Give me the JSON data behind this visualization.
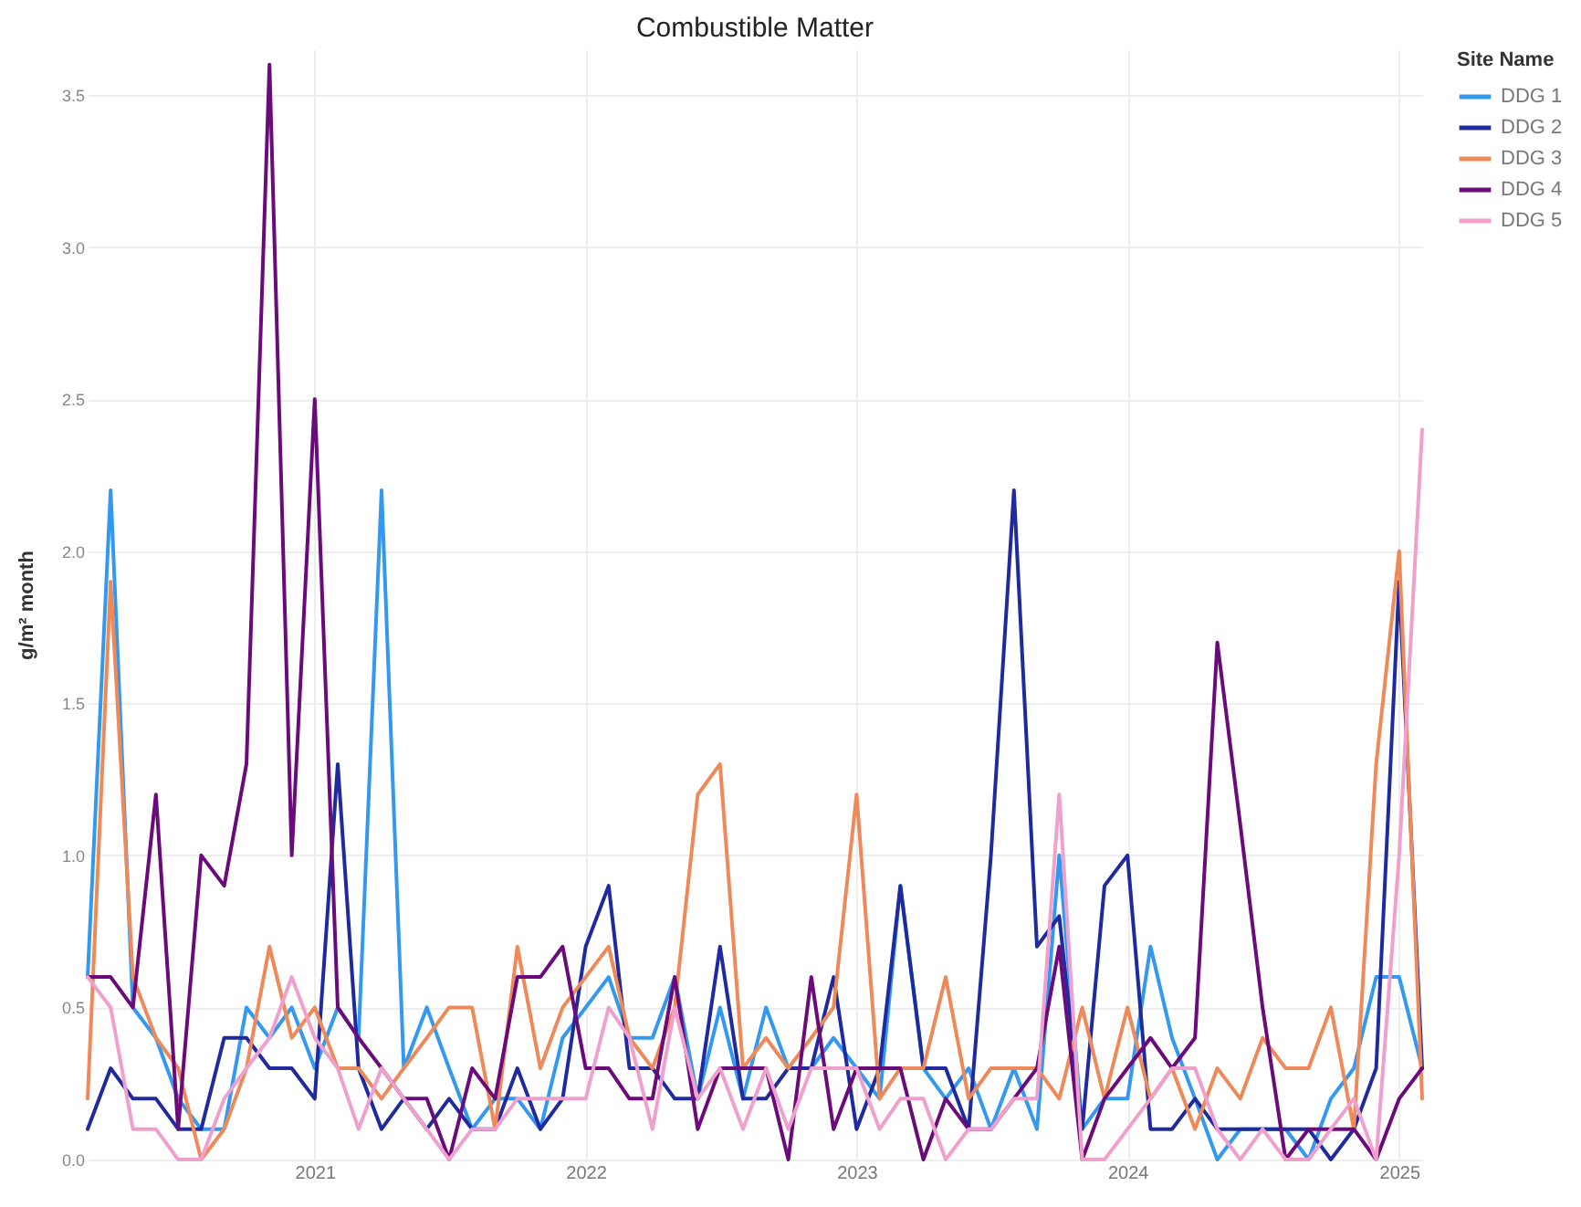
{
  "chart_data": {
    "type": "line",
    "title": "Combustible Matter",
    "ylabel": "g/m² month",
    "legend_title": "Site Name",
    "x": [
      "2020-03",
      "2020-04",
      "2020-05",
      "2020-06",
      "2020-07",
      "2020-08",
      "2020-09",
      "2020-10",
      "2020-11",
      "2020-12",
      "2021-01",
      "2021-02",
      "2021-03",
      "2021-04",
      "2021-05",
      "2021-06",
      "2021-07",
      "2021-08",
      "2021-09",
      "2021-10",
      "2021-11",
      "2021-12",
      "2022-01",
      "2022-02",
      "2022-03",
      "2022-04",
      "2022-05",
      "2022-06",
      "2022-07",
      "2022-08",
      "2022-09",
      "2022-10",
      "2022-11",
      "2022-12",
      "2023-01",
      "2023-02",
      "2023-03",
      "2023-04",
      "2023-05",
      "2023-06",
      "2023-07",
      "2023-08",
      "2023-09",
      "2023-10",
      "2023-11",
      "2023-12",
      "2024-01",
      "2024-02",
      "2024-03",
      "2024-04",
      "2024-05",
      "2024-06",
      "2024-07",
      "2024-08",
      "2024-09",
      "2024-10",
      "2024-11",
      "2024-12",
      "2025-01",
      "2025-02"
    ],
    "series": [
      {
        "name": "DDG 1",
        "color": "#3399f0",
        "values": [
          0.6,
          2.2,
          0.5,
          0.4,
          0.2,
          0.1,
          0.1,
          0.5,
          0.4,
          0.5,
          0.3,
          0.5,
          0.4,
          2.2,
          0.3,
          0.5,
          0.3,
          0.1,
          0.2,
          0.2,
          0.1,
          0.4,
          0.5,
          0.6,
          0.4,
          0.4,
          0.6,
          0.2,
          0.5,
          0.2,
          0.5,
          0.3,
          0.3,
          0.4,
          0.3,
          0.2,
          0.9,
          0.3,
          0.2,
          0.3,
          0.1,
          0.3,
          0.1,
          1.0,
          0.1,
          0.2,
          0.2,
          0.7,
          0.4,
          0.2,
          0.0,
          0.1,
          0.1,
          0.1,
          0.0,
          0.2,
          0.3,
          0.6,
          0.6,
          0.3
        ]
      },
      {
        "name": "DDG 2",
        "color": "#1f2a9e",
        "values": [
          0.1,
          0.3,
          0.2,
          0.2,
          0.1,
          0.1,
          0.4,
          0.4,
          0.3,
          0.3,
          0.2,
          1.3,
          0.3,
          0.1,
          0.2,
          0.1,
          0.2,
          0.1,
          0.1,
          0.3,
          0.1,
          0.2,
          0.7,
          0.9,
          0.3,
          0.3,
          0.2,
          0.2,
          0.7,
          0.2,
          0.2,
          0.3,
          0.3,
          0.6,
          0.1,
          0.3,
          0.9,
          0.3,
          0.3,
          0.1,
          1.0,
          2.2,
          0.7,
          0.8,
          0.1,
          0.9,
          1.0,
          0.1,
          0.1,
          0.2,
          0.1,
          0.1,
          0.1,
          0.1,
          0.1,
          0.0,
          0.1,
          0.3,
          1.9,
          0.3
        ]
      },
      {
        "name": "DDG 3",
        "color": "#ee8a5a",
        "values": [
          0.2,
          1.9,
          0.6,
          0.4,
          0.3,
          0.0,
          0.1,
          0.3,
          0.7,
          0.4,
          0.5,
          0.3,
          0.3,
          0.2,
          0.3,
          0.4,
          0.5,
          0.5,
          0.1,
          0.7,
          0.3,
          0.5,
          0.6,
          0.7,
          0.4,
          0.3,
          0.5,
          1.2,
          1.3,
          0.3,
          0.4,
          0.3,
          0.4,
          0.5,
          1.2,
          0.2,
          0.3,
          0.3,
          0.6,
          0.2,
          0.3,
          0.3,
          0.3,
          0.2,
          0.5,
          0.2,
          0.5,
          0.2,
          0.3,
          0.1,
          0.3,
          0.2,
          0.4,
          0.3,
          0.3,
          0.5,
          0.1,
          1.3,
          2.0,
          0.2
        ]
      },
      {
        "name": "DDG 4",
        "color": "#6b0a7b",
        "values": [
          0.6,
          0.6,
          0.5,
          1.2,
          0.1,
          1.0,
          0.9,
          1.3,
          3.6,
          1.0,
          2.5,
          0.5,
          0.4,
          0.3,
          0.2,
          0.2,
          0.0,
          0.3,
          0.2,
          0.6,
          0.6,
          0.7,
          0.3,
          0.3,
          0.2,
          0.2,
          0.6,
          0.1,
          0.3,
          0.3,
          0.3,
          0.0,
          0.6,
          0.1,
          0.3,
          0.3,
          0.3,
          0.0,
          0.2,
          0.1,
          0.1,
          0.2,
          0.3,
          0.7,
          0.0,
          0.2,
          0.3,
          0.4,
          0.3,
          0.4,
          1.7,
          1.1,
          0.5,
          0.0,
          0.1,
          0.1,
          0.1,
          0.0,
          0.2,
          0.3
        ]
      },
      {
        "name": "DDG 5",
        "color": "#f0a0cc",
        "values": [
          0.6,
          0.5,
          0.1,
          0.1,
          0.0,
          0.0,
          0.2,
          0.3,
          0.4,
          0.6,
          0.4,
          0.3,
          0.1,
          0.3,
          0.2,
          0.1,
          0.0,
          0.1,
          0.1,
          0.2,
          0.2,
          0.2,
          0.2,
          0.5,
          0.4,
          0.1,
          0.5,
          0.2,
          0.3,
          0.1,
          0.3,
          0.1,
          0.3,
          0.3,
          0.3,
          0.1,
          0.2,
          0.2,
          0.0,
          0.1,
          0.1,
          0.2,
          0.2,
          1.2,
          0.0,
          0.0,
          0.1,
          0.2,
          0.3,
          0.3,
          0.1,
          0.0,
          0.1,
          0.0,
          0.0,
          0.1,
          0.2,
          0.0,
          1.0,
          2.4
        ]
      }
    ],
    "xlim": [
      "2020-03",
      "2025-02"
    ],
    "xticks": [
      "2021",
      "2022",
      "2023",
      "2024",
      "2025"
    ],
    "ylim": [
      0,
      3.65
    ],
    "yticks": [
      {
        "value": 0,
        "label": "0.0"
      },
      {
        "value": 0.5,
        "label": "0.5"
      },
      {
        "value": 1,
        "label": "1.0"
      },
      {
        "value": 1.5,
        "label": "1.5"
      },
      {
        "value": 2,
        "label": "2.0"
      },
      {
        "value": 2.5,
        "label": "2.5"
      },
      {
        "value": 3,
        "label": "3.0"
      },
      {
        "value": 3.5,
        "label": "3.5"
      }
    ],
    "grid": true,
    "legend": "right",
    "line_style": "solid"
  }
}
